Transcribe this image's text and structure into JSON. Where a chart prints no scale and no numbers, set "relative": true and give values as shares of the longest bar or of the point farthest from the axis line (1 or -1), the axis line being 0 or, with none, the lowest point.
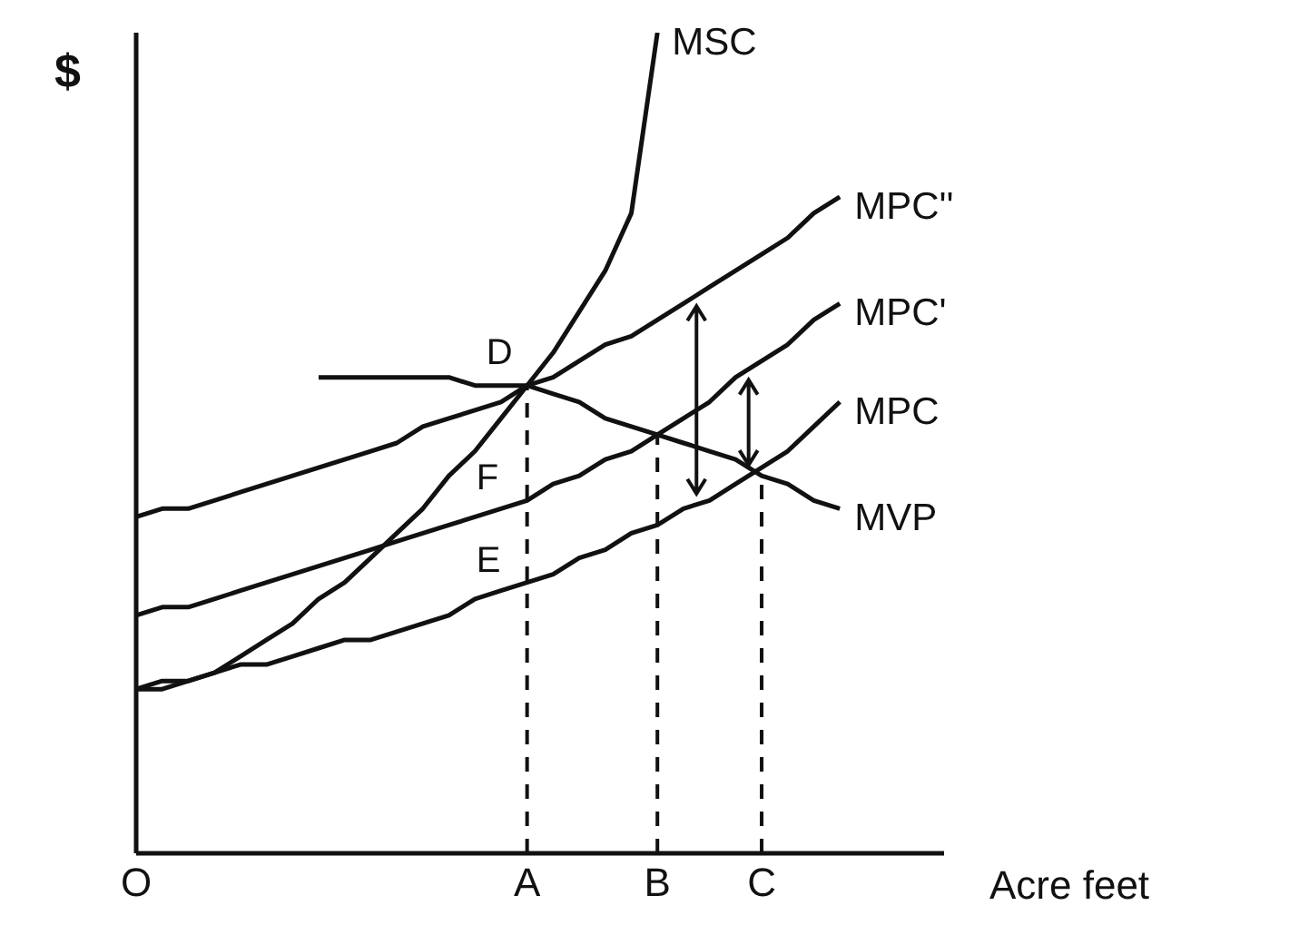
{
  "chart_data": {
    "type": "line",
    "relative": true,
    "xlabel": "Acre feet",
    "ylabel": "$",
    "categories": [
      "O",
      null,
      null,
      null,
      null,
      null,
      null,
      null,
      null,
      null,
      null,
      null,
      null,
      null,
      null,
      "A",
      null,
      null,
      null,
      null,
      "B",
      null,
      null,
      null,
      "C",
      null,
      null,
      null,
      null,
      null,
      null,
      null
    ],
    "series": [
      {
        "name": "MPC",
        "color": "#111111",
        "values": [
          0.2,
          0.21,
          0.21,
          0.22,
          0.23,
          0.23,
          0.24,
          0.25,
          0.26,
          0.26,
          0.27,
          0.28,
          0.29,
          0.31,
          0.32,
          0.33,
          0.34,
          0.36,
          0.37,
          0.39,
          0.4,
          0.42,
          0.43,
          0.45,
          0.47,
          0.49,
          0.52,
          0.55,
          null,
          null,
          null,
          null
        ]
      },
      {
        "name": "MPC'",
        "color": "#111111",
        "values": [
          0.29,
          0.3,
          0.3,
          0.31,
          0.32,
          0.33,
          0.34,
          0.35,
          0.36,
          0.37,
          0.38,
          0.39,
          0.4,
          0.41,
          0.42,
          0.43,
          0.45,
          0.46,
          0.48,
          0.49,
          0.51,
          0.53,
          0.55,
          0.58,
          0.6,
          0.62,
          0.65,
          0.67,
          null,
          null,
          null,
          null
        ]
      },
      {
        "name": "MPC''",
        "color": "#111111",
        "values": [
          0.41,
          0.42,
          0.42,
          0.43,
          0.44,
          0.45,
          0.46,
          0.47,
          0.48,
          0.49,
          0.5,
          0.52,
          0.53,
          0.54,
          0.55,
          0.57,
          0.58,
          0.6,
          0.62,
          0.63,
          0.65,
          0.67,
          0.69,
          0.71,
          0.73,
          0.75,
          0.78,
          0.8,
          null,
          null,
          null,
          null
        ]
      },
      {
        "name": "MSC",
        "color": "#111111",
        "values": [
          0.2,
          0.2,
          0.21,
          0.22,
          0.24,
          0.26,
          0.28,
          0.31,
          0.33,
          0.36,
          0.39,
          0.42,
          0.46,
          0.49,
          0.53,
          0.57,
          0.61,
          0.66,
          0.71,
          0.78,
          1.0,
          null,
          null,
          null,
          null,
          null,
          null,
          null,
          null,
          null,
          null,
          null
        ]
      },
      {
        "name": "MVP",
        "color": "#111111",
        "values": [
          null,
          null,
          null,
          null,
          null,
          null,
          null,
          0.58,
          0.58,
          0.58,
          0.58,
          0.58,
          0.58,
          0.57,
          0.57,
          0.57,
          0.56,
          0.55,
          0.53,
          0.52,
          0.51,
          0.5,
          0.49,
          0.48,
          0.46,
          0.45,
          0.43,
          0.42,
          null,
          null,
          null,
          null
        ]
      }
    ],
    "ref_lines": [
      {
        "axis": "x",
        "value": "A",
        "line_style": "dashed",
        "color": "#111111"
      },
      {
        "axis": "x",
        "value": "B",
        "line_style": "dashed",
        "color": "#111111"
      },
      {
        "axis": "x",
        "value": "C",
        "line_style": "dashed",
        "color": "#111111"
      }
    ],
    "annotations": [
      {
        "text": "D",
        "x": "A",
        "y": 0.57
      },
      {
        "text": "F",
        "x": "A",
        "y": 0.43
      },
      {
        "text": "E",
        "x": "A",
        "y": 0.33
      }
    ],
    "grid": false,
    "legend": false,
    "marker": "none",
    "line_style": "solid"
  }
}
